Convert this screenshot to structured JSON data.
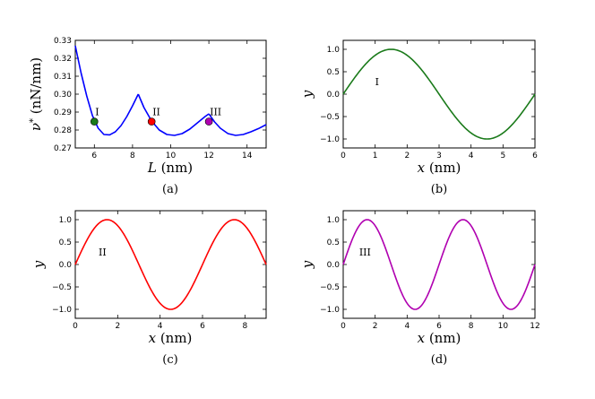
{
  "chart_data": [
    {
      "type": "line",
      "panel": "(a)",
      "xlabel": "L (nm)",
      "ylabel": "ν* (nN/nm)",
      "xlim": [
        5,
        15
      ],
      "ylim": [
        0.27,
        0.33
      ],
      "xticks": [
        6,
        8,
        10,
        12,
        14
      ],
      "xtick_labels": [
        "6",
        "8",
        "10",
        "12",
        "14"
      ],
      "yticks": [
        0.27,
        0.28,
        0.29,
        0.3,
        0.31,
        0.32,
        0.33
      ],
      "ytick_labels": [
        "0.27",
        "0.28",
        "0.29",
        "0.30",
        "0.31",
        "0.32",
        "0.33"
      ],
      "color": "#0000ff",
      "series": [
        {
          "x": [
            5.0,
            5.3,
            5.6,
            5.9,
            6.2,
            6.5,
            6.8,
            7.1,
            7.4,
            7.7,
            8.0,
            8.3
          ],
          "y": [
            0.327,
            0.312,
            0.299,
            0.288,
            0.281,
            0.2775,
            0.2773,
            0.279,
            0.2825,
            0.2875,
            0.2935,
            0.3
          ]
        },
        {
          "x": [
            8.3,
            8.6,
            9.0,
            9.4,
            9.8,
            10.2,
            10.6,
            11.0,
            11.4,
            11.8,
            12.0
          ],
          "y": [
            0.3,
            0.2925,
            0.285,
            0.28,
            0.2775,
            0.277,
            0.278,
            0.2805,
            0.284,
            0.2875,
            0.289
          ]
        },
        {
          "x": [
            12.0,
            12.3,
            12.6,
            13.0,
            13.4,
            13.8,
            14.2,
            14.6,
            15.0
          ],
          "y": [
            0.289,
            0.2845,
            0.281,
            0.278,
            0.277,
            0.2775,
            0.279,
            0.2808,
            0.283
          ]
        }
      ],
      "markers": [
        {
          "x": 6.0,
          "y": 0.2847,
          "color": "#1a7a1a",
          "label": "I"
        },
        {
          "x": 9.0,
          "y": 0.2847,
          "color": "#ff0000",
          "label": "II"
        },
        {
          "x": 12.0,
          "y": 0.2847,
          "color": "#b000b0",
          "label": "III"
        }
      ]
    },
    {
      "type": "line",
      "panel": "(b)",
      "xlabel": "x (nm)",
      "ylabel": "y",
      "xlim": [
        0,
        6
      ],
      "ylim": [
        -1.2,
        1.2
      ],
      "xticks": [
        0,
        1,
        2,
        3,
        4,
        5,
        6
      ],
      "xtick_labels": [
        "0",
        "1",
        "2",
        "3",
        "4",
        "5",
        "6"
      ],
      "yticks": [
        -1.0,
        -0.5,
        0.0,
        0.5,
        1.0
      ],
      "ytick_labels": [
        "−1.0",
        "−0.5",
        "0.0",
        "0.5",
        "1.0"
      ],
      "color": "#1a7a1a",
      "function": "y = sin(2*pi*x/6)",
      "mode_label": "I",
      "mode_label_pos": [
        1.0,
        0.2
      ]
    },
    {
      "type": "line",
      "panel": "(c)",
      "xlabel": "x (nm)",
      "ylabel": "y",
      "xlim": [
        0,
        9
      ],
      "ylim": [
        -1.2,
        1.2
      ],
      "xticks": [
        0,
        2,
        4,
        6,
        8
      ],
      "xtick_labels": [
        "0",
        "2",
        "4",
        "6",
        "8"
      ],
      "yticks": [
        -1.0,
        -0.5,
        0.0,
        0.5,
        1.0
      ],
      "ytick_labels": [
        "−1.0",
        "−0.5",
        "0.0",
        "0.5",
        "1.0"
      ],
      "color": "#ff0000",
      "function": "y = sin(2*pi*x/6)",
      "mode_label": "II",
      "mode_label_pos": [
        1.1,
        0.2
      ]
    },
    {
      "type": "line",
      "panel": "(d)",
      "xlabel": "x (nm)",
      "ylabel": "y",
      "xlim": [
        0,
        12
      ],
      "ylim": [
        -1.2,
        1.2
      ],
      "xticks": [
        0,
        2,
        4,
        6,
        8,
        10,
        12
      ],
      "xtick_labels": [
        "0",
        "2",
        "4",
        "6",
        "8",
        "10",
        "12"
      ],
      "yticks": [
        -1.0,
        -0.5,
        0.0,
        0.5,
        1.0
      ],
      "ytick_labels": [
        "−1.0",
        "−0.5",
        "0.0",
        "0.5",
        "1.0"
      ],
      "color": "#b000b0",
      "function": "y = sin(2*pi*x/6)",
      "mode_label": "III",
      "mode_label_pos": [
        1.0,
        0.2
      ]
    }
  ]
}
